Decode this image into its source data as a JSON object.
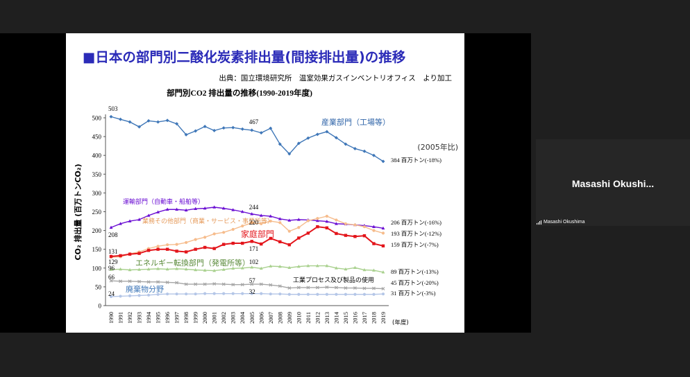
{
  "slide": {
    "title": "■日本の部門別二酸化炭素排出量(間接排出量)の推移",
    "source": "出典：国立環境研究所　温室効果ガスインベントリオフィス　より加工",
    "baseline_note": "(2005年比)"
  },
  "chart_data": {
    "type": "line",
    "title": "部門別CO2 排出量の推移(1990-2019年度)",
    "ylabel": "CO₂ 排出量 (百万トンCO₂)",
    "xlabel": "(年度)",
    "ylim": [
      0,
      500
    ],
    "yticks": [
      0,
      50,
      100,
      150,
      200,
      250,
      300,
      350,
      400,
      450,
      500
    ],
    "grid": false,
    "categories": [
      "1990",
      "1991",
      "1992",
      "1993",
      "1994",
      "1995",
      "1996",
      "1997",
      "1998",
      "1999",
      "2000",
      "2001",
      "2002",
      "2003",
      "2004",
      "2005",
      "2006",
      "2007",
      "2008",
      "2009",
      "2010",
      "2011",
      "2012",
      "2013",
      "2014",
      "2015",
      "2016",
      "2017",
      "2018",
      "2019"
    ],
    "series": [
      {
        "name": "産業部門（工場等）",
        "color": "#3f77b8",
        "marker": "diamond",
        "values": [
          503,
          496,
          489,
          476,
          492,
          489,
          493,
          484,
          455,
          465,
          477,
          466,
          473,
          474,
          470,
          467,
          460,
          472,
          430,
          404,
          432,
          446,
          456,
          463,
          447,
          430,
          418,
          411,
          400,
          384
        ],
        "end_label": "384 百万トン(-18%)"
      },
      {
        "name": "運輸部門（自動車・船舶等）",
        "color": "#6b0fd3",
        "marker": "triangle",
        "values": [
          208,
          218,
          225,
          229,
          240,
          249,
          256,
          256,
          254,
          258,
          259,
          262,
          259,
          255,
          250,
          244,
          240,
          238,
          231,
          227,
          229,
          228,
          226,
          224,
          218,
          217,
          215,
          213,
          210,
          206
        ],
        "end_label": "206 百万トン(-16%)"
      },
      {
        "name": "業務その他部門（商業・サービス・事業所等）",
        "color": "#f6bc8c",
        "marker": "circle",
        "values": [
          129,
          130,
          138,
          143,
          152,
          158,
          162,
          163,
          168,
          176,
          182,
          191,
          195,
          203,
          212,
          220,
          218,
          225,
          221,
          198,
          208,
          226,
          232,
          238,
          228,
          218,
          215,
          210,
          200,
          193
        ],
        "end_label": "193 百万トン(-12%)"
      },
      {
        "name": "家庭部門",
        "color": "#e3151b",
        "marker": "square",
        "values": [
          131,
          133,
          137,
          139,
          147,
          150,
          150,
          145,
          143,
          150,
          155,
          152,
          163,
          166,
          166,
          171,
          164,
          179,
          170,
          162,
          180,
          193,
          210,
          207,
          192,
          187,
          184,
          186,
          165,
          159
        ],
        "end_label": "159 百万トン(-7%)"
      },
      {
        "name": "エネルギー転換部門（発電所等）",
        "color": "#a8d08d",
        "marker": "triangle",
        "values": [
          96,
          97,
          95,
          96,
          97,
          98,
          97,
          98,
          97,
          95,
          94,
          93,
          96,
          99,
          100,
          102,
          99,
          105,
          104,
          101,
          104,
          106,
          106,
          106,
          100,
          97,
          101,
          95,
          94,
          89
        ],
        "end_label": "89 百万トン(-13%)"
      },
      {
        "name": "工業プロセス及び製品の使用",
        "color": "#a5a5a5",
        "marker": "x",
        "values": [
          66,
          65,
          65,
          64,
          63,
          63,
          62,
          61,
          57,
          57,
          57,
          58,
          57,
          56,
          56,
          57,
          57,
          55,
          52,
          47,
          48,
          48,
          48,
          49,
          48,
          47,
          47,
          46,
          46,
          45
        ],
        "end_label": "45 百万トン(-20%)"
      },
      {
        "name": "廃棄物分野",
        "color": "#b4c6e7",
        "marker": "circle",
        "values": [
          24,
          25,
          26,
          27,
          28,
          30,
          31,
          31,
          31,
          31,
          32,
          32,
          32,
          32,
          32,
          32,
          32,
          31,
          31,
          30,
          30,
          30,
          30,
          30,
          30,
          30,
          30,
          30,
          30,
          31
        ],
        "end_label": "31 百万トン(-3%)"
      }
    ],
    "annotations": [
      {
        "year": "1990",
        "value": 503,
        "text": "503"
      },
      {
        "year": "1990",
        "value": 208,
        "text": "208"
      },
      {
        "year": "1990",
        "value": 131,
        "text": "131"
      },
      {
        "year": "1990",
        "value": 129,
        "text": "129"
      },
      {
        "year": "1990",
        "value": 96,
        "text": "96"
      },
      {
        "year": "1990",
        "value": 66,
        "text": "66"
      },
      {
        "year": "1990",
        "value": 24,
        "text": "24"
      },
      {
        "year": "2005",
        "value": 467,
        "text": "467"
      },
      {
        "year": "2005",
        "value": 244,
        "text": "244"
      },
      {
        "year": "2005",
        "value": 220,
        "text": "220"
      },
      {
        "year": "2005",
        "value": 171,
        "text": "171"
      },
      {
        "year": "2005",
        "value": 102,
        "text": "102"
      },
      {
        "year": "2005",
        "value": 57,
        "text": "57"
      },
      {
        "year": "2005",
        "value": 32,
        "text": "32"
      }
    ]
  },
  "participant": {
    "display_name": "Masashi  Okushi...",
    "label": "Masashi Okushima",
    "signal_icon": "signal-bars-icon"
  }
}
